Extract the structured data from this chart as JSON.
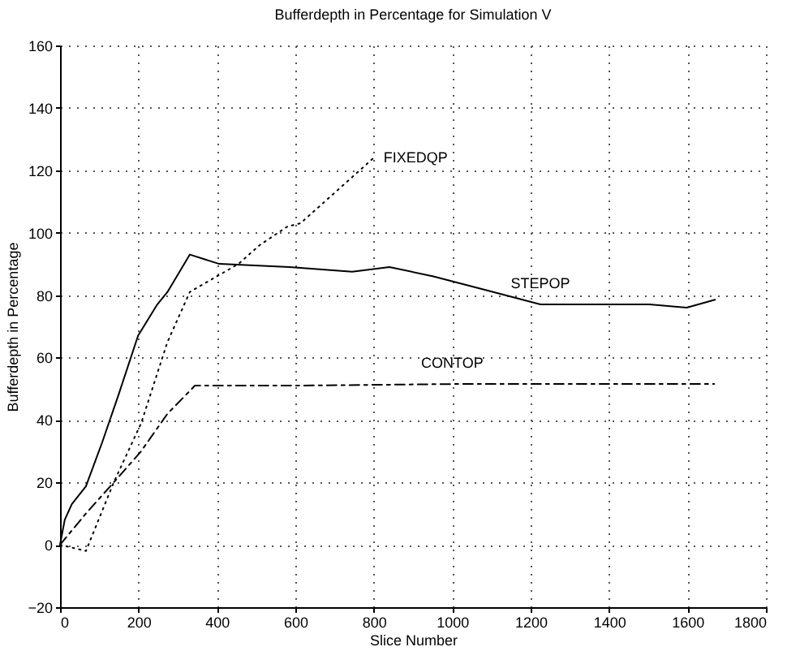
{
  "chart_data": {
    "type": "line",
    "title": "Bufferdepth in Percentage for Simulation V",
    "xlabel": "Slice Number",
    "ylabel": "Bufferdepth in Percentage",
    "xlim": [
      0,
      1800
    ],
    "xticks": [
      0,
      200,
      400,
      600,
      800,
      1000,
      1200,
      1400,
      1600,
      1800
    ],
    "ylim": [
      -20,
      160
    ],
    "yticks": [
      -20,
      0,
      20,
      40,
      60,
      80,
      100,
      120,
      140,
      160
    ],
    "grid": true,
    "series": [
      {
        "name": "FIXEDQP",
        "color": "#000000",
        "line_style": "dotted",
        "x": [
          0,
          66,
          137,
          207,
          274,
          331,
          455,
          509,
          580,
          613,
          800
        ],
        "values": [
          0,
          -2,
          20,
          39,
          65,
          81,
          90,
          96,
          102,
          103,
          124
        ]
      },
      {
        "name": "STEPOP",
        "color": "#000000",
        "line_style": "solid",
        "x": [
          0,
          12,
          30,
          66,
          108,
          149,
          199,
          248,
          274,
          331,
          406,
          585,
          745,
          840,
          952,
          1089,
          1225,
          1503,
          1598,
          1670
        ],
        "values": [
          0,
          8,
          13,
          18.7,
          33,
          48,
          67,
          77,
          81,
          93,
          90,
          89,
          87.5,
          89,
          86,
          81.5,
          77,
          77,
          76,
          78.5
        ]
      },
      {
        "name": "CONTOP",
        "color": "#000000",
        "line_style": "dashed",
        "x": [
          0,
          66,
          137,
          207,
          274,
          344,
          600,
          1000,
          1400,
          1668
        ],
        "values": [
          0,
          10,
          20,
          30,
          42,
          51,
          51,
          51.5,
          51.5,
          51.5
        ]
      }
    ]
  }
}
